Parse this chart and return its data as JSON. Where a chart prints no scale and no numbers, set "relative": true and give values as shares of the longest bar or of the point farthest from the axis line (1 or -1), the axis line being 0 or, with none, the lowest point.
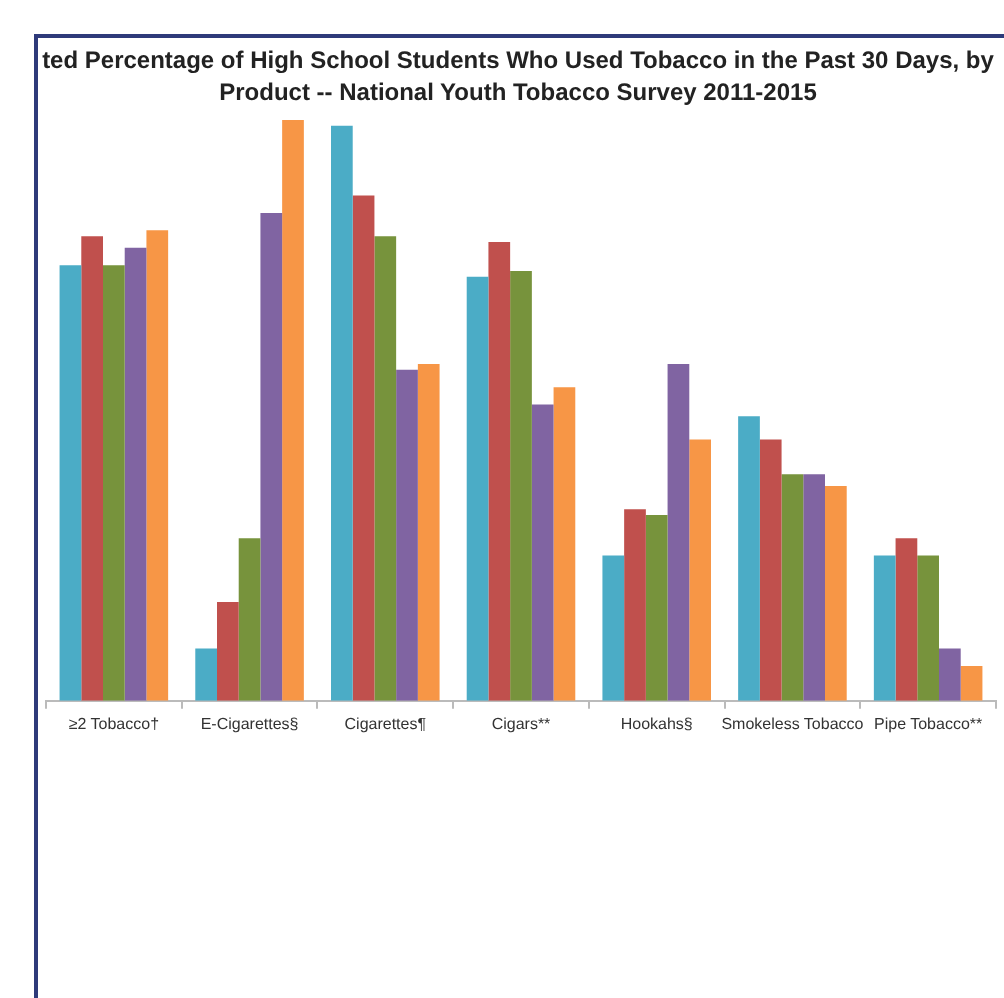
{
  "chart_data": {
    "type": "bar",
    "title": "ted Percentage of High School Students Who Used Tobacco in the Past 30 Days, by Product -- National Youth Tobacco Survey 2011-2015",
    "relative": true,
    "legend": false,
    "categories": [
      "≥2 Tobacco†",
      "E-Cigarettes§",
      "Cigarettes¶",
      "Cigars**",
      "Hookahs§",
      "Smokeless Tobacco",
      "Pipe Tobacco**"
    ],
    "series": [
      {
        "color": "#4bacc6",
        "values": [
          0.75,
          0.09,
          0.99,
          0.73,
          0.25,
          0.49,
          0.25
        ]
      },
      {
        "color": "#c0504d",
        "values": [
          0.8,
          0.17,
          0.87,
          0.79,
          0.33,
          0.45,
          0.28
        ]
      },
      {
        "color": "#77933c",
        "values": [
          0.75,
          0.28,
          0.8,
          0.74,
          0.32,
          0.39,
          0.25
        ]
      },
      {
        "color": "#8064a2",
        "values": [
          0.78,
          0.84,
          0.57,
          0.51,
          0.58,
          0.39,
          0.09
        ]
      },
      {
        "color": "#f79646",
        "values": [
          0.81,
          1,
          0.58,
          0.54,
          0.45,
          0.37,
          0.06
        ]
      }
    ]
  }
}
